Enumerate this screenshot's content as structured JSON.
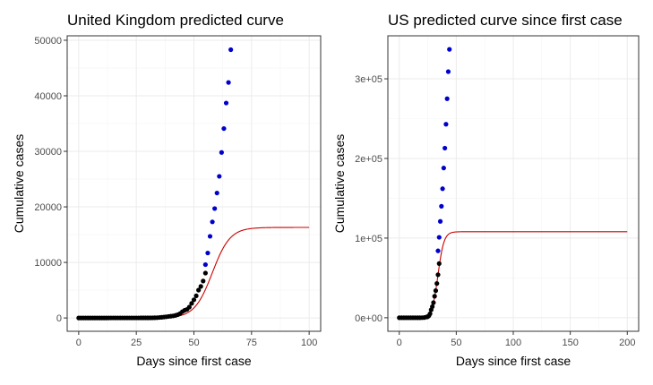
{
  "colors": {
    "observed": "#000000",
    "projected": "#0000cd",
    "fitted": "#cc0000",
    "grid": "#ebebeb",
    "border": "#333333"
  },
  "chart_data": [
    {
      "type": "scatter",
      "title": "United Kingdom predicted curve",
      "xlabel": "Days since first case",
      "ylabel": "Cumulative cases",
      "xlim": [
        -5,
        105
      ],
      "ylim": [
        -2400,
        50800
      ],
      "x_ticks": [
        0,
        25,
        50,
        75,
        100
      ],
      "x_tick_labels": [
        "0",
        "25",
        "50",
        "75",
        "100"
      ],
      "y_ticks": [
        0,
        10000,
        20000,
        30000,
        40000,
        50000
      ],
      "y_tick_labels": [
        "0",
        "10000",
        "20000",
        "30000",
        "40000",
        "50000"
      ],
      "grid": true,
      "series": [
        {
          "role": "observed",
          "points": [
            [
              0,
              2
            ],
            [
              1,
              2
            ],
            [
              2,
              2
            ],
            [
              3,
              2
            ],
            [
              4,
              2
            ],
            [
              5,
              2
            ],
            [
              6,
              2
            ],
            [
              7,
              2
            ],
            [
              8,
              2
            ],
            [
              9,
              2
            ],
            [
              10,
              2
            ],
            [
              11,
              2
            ],
            [
              12,
              2
            ],
            [
              13,
              3
            ],
            [
              14,
              8
            ],
            [
              15,
              9
            ],
            [
              16,
              9
            ],
            [
              17,
              9
            ],
            [
              18,
              9
            ],
            [
              19,
              9
            ],
            [
              20,
              9
            ],
            [
              21,
              9
            ],
            [
              22,
              9
            ],
            [
              23,
              9
            ],
            [
              24,
              9
            ],
            [
              25,
              9
            ],
            [
              26,
              9
            ],
            [
              27,
              13
            ],
            [
              28,
              13
            ],
            [
              29,
              13
            ],
            [
              30,
              16
            ],
            [
              31,
              19
            ],
            [
              32,
              23
            ],
            [
              33,
              36
            ],
            [
              34,
              51
            ],
            [
              35,
              87
            ],
            [
              36,
              116
            ],
            [
              37,
              164
            ],
            [
              38,
              206
            ],
            [
              39,
              273
            ],
            [
              40,
              321
            ],
            [
              41,
              373
            ],
            [
              42,
              456
            ],
            [
              43,
              590
            ],
            [
              44,
              798
            ],
            [
              45,
              1140
            ],
            [
              46,
              1391
            ],
            [
              47,
              1543
            ],
            [
              48,
              1950
            ],
            [
              49,
              2626
            ],
            [
              50,
              3269
            ],
            [
              51,
              3983
            ],
            [
              52,
              5018
            ],
            [
              53,
              5683
            ],
            [
              54,
              6650
            ],
            [
              55,
              8077
            ]
          ]
        },
        {
          "role": "projected",
          "points": [
            [
              55,
              9600
            ],
            [
              56,
              11700
            ],
            [
              57,
              14700
            ],
            [
              58,
              17300
            ],
            [
              59,
              19700
            ],
            [
              60,
              22500
            ],
            [
              61,
              25500
            ],
            [
              62,
              29800
            ],
            [
              63,
              34100
            ],
            [
              64,
              38700
            ],
            [
              65,
              42400
            ],
            [
              66,
              48300
            ]
          ]
        },
        {
          "role": "fitted",
          "model": "logistic",
          "K": 16300,
          "r": 0.26,
          "x0": 58,
          "x_range": [
            0,
            100
          ]
        }
      ]
    },
    {
      "type": "scatter",
      "title": "US predicted curve since first case",
      "xlabel": "Days since first case",
      "ylabel": "Cumulative cases",
      "xlim": [
        -10,
        210
      ],
      "ylim": [
        -17000,
        354000
      ],
      "x_ticks": [
        0,
        50,
        100,
        150,
        200
      ],
      "x_tick_labels": [
        "0",
        "50",
        "100",
        "150",
        "200"
      ],
      "y_ticks": [
        0,
        100000,
        200000,
        300000
      ],
      "y_tick_labels": [
        "0e+00",
        "1e+05",
        "2e+05",
        "3e+05"
      ],
      "grid": true,
      "series": [
        {
          "role": "observed",
          "points": [
            [
              0,
              1
            ],
            [
              2,
              1
            ],
            [
              4,
              2
            ],
            [
              6,
              5
            ],
            [
              8,
              5
            ],
            [
              10,
              6
            ],
            [
              12,
              8
            ],
            [
              14,
              11
            ],
            [
              16,
              12
            ],
            [
              18,
              14
            ],
            [
              20,
              100
            ],
            [
              22,
              250
            ],
            [
              24,
              1000
            ],
            [
              25,
              1300
            ],
            [
              26,
              2500
            ],
            [
              27,
              5000
            ],
            [
              28,
              10000
            ],
            [
              29,
              14000
            ],
            [
              30,
              19000
            ],
            [
              31,
              27000
            ],
            [
              32,
              34000
            ],
            [
              33,
              43000
            ],
            [
              34,
              54000
            ],
            [
              35,
              68000
            ]
          ]
        },
        {
          "role": "projected",
          "points": [
            [
              34,
              84000
            ],
            [
              35,
              101000
            ],
            [
              36,
              121000
            ],
            [
              37,
              140000
            ],
            [
              38,
              162000
            ],
            [
              39,
              188000
            ],
            [
              40,
              213000
            ],
            [
              41,
              243000
            ],
            [
              42,
              275000
            ],
            [
              43,
              309000
            ],
            [
              44,
              337000
            ]
          ]
        },
        {
          "role": "fitted",
          "model": "logistic",
          "K": 108000,
          "r": 0.38,
          "x0": 34,
          "x_range": [
            0,
            200
          ]
        }
      ]
    }
  ]
}
